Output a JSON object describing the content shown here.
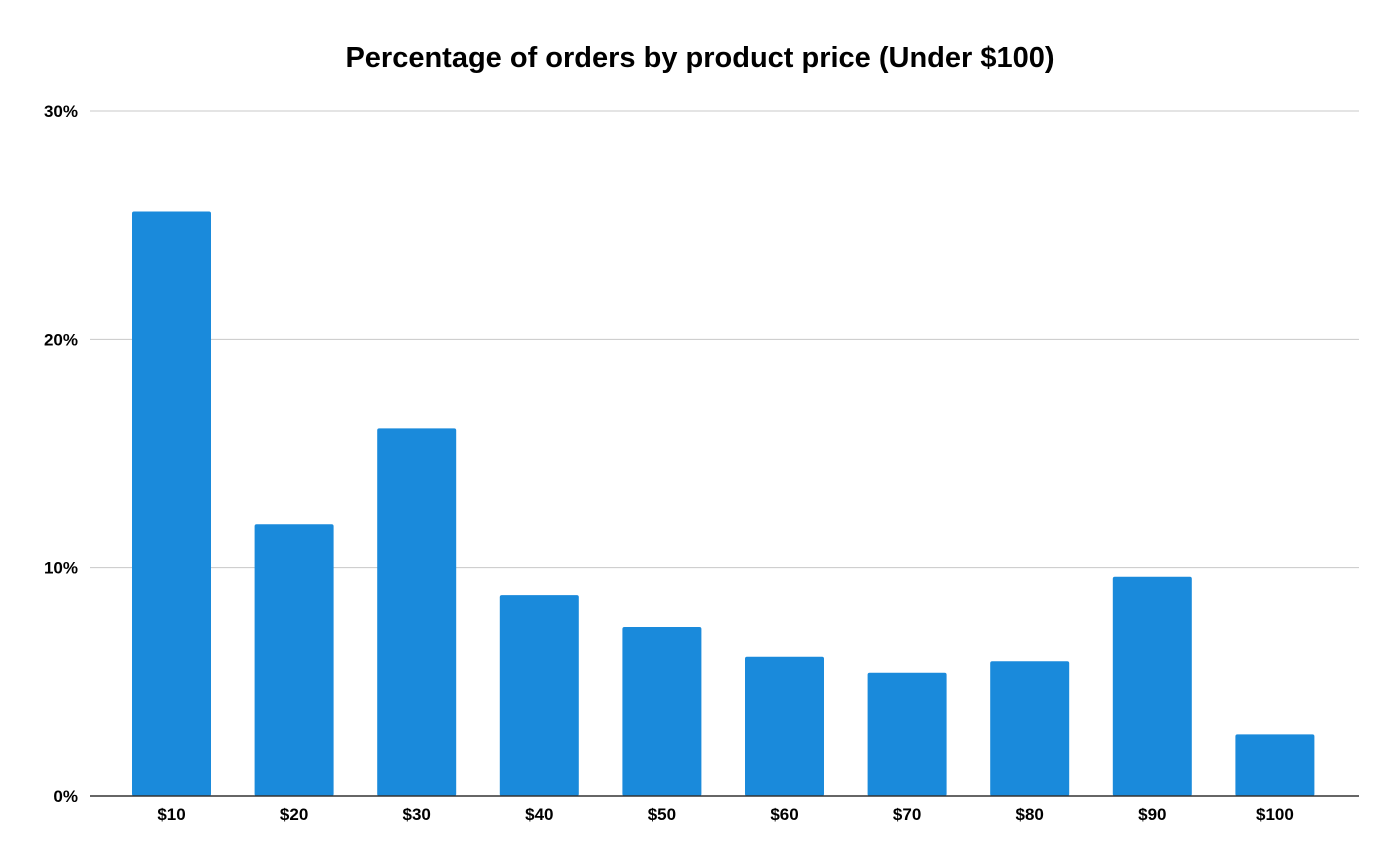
{
  "chart_data": {
    "type": "bar",
    "title": "Percentage of orders by product price (Under $100)",
    "xlabel": "",
    "ylabel": "",
    "categories": [
      "$10",
      "$20",
      "$30",
      "$40",
      "$50",
      "$60",
      "$70",
      "$80",
      "$90",
      "$100"
    ],
    "values": [
      25.6,
      11.9,
      16.1,
      8.8,
      7.4,
      6.1,
      5.4,
      5.9,
      9.6,
      2.7
    ],
    "value_unit": "%",
    "ylim": [
      0,
      30
    ],
    "yticks": [
      0,
      10,
      20,
      30
    ],
    "ytick_labels": [
      "0%",
      "10%",
      "20%",
      "30%"
    ],
    "grid": true,
    "legend": "none",
    "bar_color": "#1a8adb"
  }
}
